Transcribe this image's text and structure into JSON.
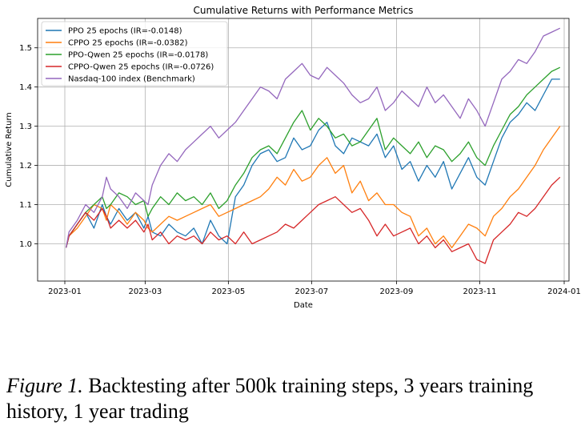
{
  "chart_data": {
    "type": "line",
    "title": "Cumulative Returns with Performance Metrics",
    "xlabel": "Date",
    "ylabel": "Cumulative Return",
    "xlim": [
      0,
      12.0
    ],
    "ylim": [
      0.905,
      1.575
    ],
    "grid": true,
    "legend_position": "top-left",
    "x_ticks": [
      {
        "label": "2023-01",
        "value": 0
      },
      {
        "label": "2023-03",
        "value": 1.93
      },
      {
        "label": "2023-05",
        "value": 3.93
      },
      {
        "label": "2023-07",
        "value": 5.93
      },
      {
        "label": "2023-09",
        "value": 7.97
      },
      {
        "label": "2023-11",
        "value": 9.97
      },
      {
        "label": "2024-01",
        "value": 12.0
      }
    ],
    "y_ticks": [
      {
        "label": "1.0",
        "value": 1.0
      },
      {
        "label": "1.1",
        "value": 1.1
      },
      {
        "label": "1.2",
        "value": 1.2
      },
      {
        "label": "1.3",
        "value": 1.3
      },
      {
        "label": "1.4",
        "value": 1.4
      },
      {
        "label": "1.5",
        "value": 1.5
      }
    ],
    "series": [
      {
        "name": "PPO 25 epochs (IR=-0.0148)",
        "color": "#1f77b4",
        "x": [
          0.03,
          0.1,
          0.3,
          0.5,
          0.7,
          0.9,
          1.0,
          1.1,
          1.3,
          1.5,
          1.7,
          1.9,
          2.0,
          2.1,
          2.3,
          2.5,
          2.7,
          2.9,
          3.1,
          3.3,
          3.5,
          3.7,
          3.9,
          4.1,
          4.3,
          4.5,
          4.7,
          4.9,
          5.1,
          5.3,
          5.5,
          5.7,
          5.9,
          6.1,
          6.3,
          6.5,
          6.7,
          6.9,
          7.1,
          7.3,
          7.5,
          7.7,
          7.9,
          8.1,
          8.3,
          8.5,
          8.7,
          8.9,
          9.1,
          9.3,
          9.5,
          9.7,
          9.9,
          10.1,
          10.3,
          10.5,
          10.7,
          10.9,
          11.1,
          11.3,
          11.5,
          11.7,
          11.9
        ],
        "y": [
          0.99,
          1.02,
          1.05,
          1.08,
          1.04,
          1.1,
          1.07,
          1.05,
          1.09,
          1.06,
          1.08,
          1.04,
          1.07,
          1.03,
          1.02,
          1.05,
          1.03,
          1.02,
          1.04,
          1.0,
          1.06,
          1.02,
          1.0,
          1.12,
          1.15,
          1.2,
          1.23,
          1.24,
          1.21,
          1.22,
          1.27,
          1.24,
          1.25,
          1.29,
          1.31,
          1.25,
          1.23,
          1.27,
          1.26,
          1.25,
          1.28,
          1.22,
          1.25,
          1.19,
          1.21,
          1.16,
          1.2,
          1.17,
          1.21,
          1.14,
          1.18,
          1.22,
          1.17,
          1.15,
          1.21,
          1.27,
          1.31,
          1.33,
          1.36,
          1.34,
          1.38,
          1.42,
          1.42
        ]
      },
      {
        "name": "CPPO 25 epochs (IR=-0.0382)",
        "color": "#ff7f0e",
        "x": [
          0.03,
          0.1,
          0.3,
          0.5,
          0.7,
          0.9,
          1.0,
          1.1,
          1.3,
          1.5,
          1.7,
          1.9,
          2.0,
          2.1,
          2.3,
          2.5,
          2.7,
          2.9,
          3.1,
          3.3,
          3.5,
          3.7,
          3.9,
          4.1,
          4.3,
          4.5,
          4.7,
          4.9,
          5.1,
          5.3,
          5.5,
          5.7,
          5.9,
          6.1,
          6.3,
          6.5,
          6.7,
          6.9,
          7.1,
          7.3,
          7.5,
          7.7,
          7.9,
          8.1,
          8.3,
          8.5,
          8.7,
          8.9,
          9.1,
          9.3,
          9.5,
          9.7,
          9.9,
          10.1,
          10.3,
          10.5,
          10.7,
          10.9,
          11.1,
          11.3,
          11.5,
          11.7,
          11.9
        ],
        "y": [
          0.99,
          1.02,
          1.04,
          1.07,
          1.1,
          1.09,
          1.06,
          1.1,
          1.08,
          1.05,
          1.08,
          1.06,
          1.04,
          1.03,
          1.05,
          1.07,
          1.06,
          1.07,
          1.08,
          1.09,
          1.1,
          1.07,
          1.08,
          1.09,
          1.1,
          1.11,
          1.12,
          1.14,
          1.17,
          1.15,
          1.19,
          1.16,
          1.17,
          1.2,
          1.22,
          1.18,
          1.2,
          1.13,
          1.16,
          1.11,
          1.13,
          1.1,
          1.1,
          1.08,
          1.07,
          1.02,
          1.04,
          1.0,
          1.02,
          0.99,
          1.02,
          1.05,
          1.04,
          1.02,
          1.07,
          1.09,
          1.12,
          1.14,
          1.17,
          1.2,
          1.24,
          1.27,
          1.3
        ]
      },
      {
        "name": "PPO-Qwen 25 epochs (IR=-0.0178)",
        "color": "#2ca02c",
        "x": [
          0.03,
          0.1,
          0.3,
          0.5,
          0.7,
          0.9,
          1.0,
          1.1,
          1.3,
          1.5,
          1.7,
          1.9,
          2.0,
          2.1,
          2.3,
          2.5,
          2.7,
          2.9,
          3.1,
          3.3,
          3.5,
          3.7,
          3.9,
          4.1,
          4.3,
          4.5,
          4.7,
          4.9,
          5.1,
          5.3,
          5.5,
          5.7,
          5.9,
          6.1,
          6.3,
          6.5,
          6.7,
          6.9,
          7.1,
          7.3,
          7.5,
          7.7,
          7.9,
          8.1,
          8.3,
          8.5,
          8.7,
          8.9,
          9.1,
          9.3,
          9.5,
          9.7,
          9.9,
          10.1,
          10.3,
          10.5,
          10.7,
          10.9,
          11.1,
          11.3,
          11.5,
          11.7,
          11.9
        ],
        "y": [
          0.99,
          1.02,
          1.05,
          1.08,
          1.1,
          1.12,
          1.09,
          1.1,
          1.13,
          1.12,
          1.1,
          1.11,
          1.07,
          1.09,
          1.12,
          1.1,
          1.13,
          1.11,
          1.12,
          1.1,
          1.13,
          1.09,
          1.11,
          1.15,
          1.18,
          1.22,
          1.24,
          1.25,
          1.23,
          1.27,
          1.31,
          1.34,
          1.29,
          1.32,
          1.3,
          1.27,
          1.28,
          1.25,
          1.26,
          1.29,
          1.32,
          1.24,
          1.27,
          1.25,
          1.23,
          1.26,
          1.22,
          1.25,
          1.24,
          1.21,
          1.23,
          1.26,
          1.22,
          1.2,
          1.25,
          1.29,
          1.33,
          1.35,
          1.38,
          1.4,
          1.42,
          1.44,
          1.45
        ]
      },
      {
        "name": "CPPO-Qwen 25 epochs (IR=-0.0726)",
        "color": "#d62728",
        "x": [
          0.03,
          0.1,
          0.3,
          0.5,
          0.7,
          0.9,
          1.0,
          1.1,
          1.3,
          1.5,
          1.7,
          1.9,
          2.0,
          2.1,
          2.3,
          2.5,
          2.7,
          2.9,
          3.1,
          3.3,
          3.5,
          3.7,
          3.9,
          4.1,
          4.3,
          4.5,
          4.7,
          4.9,
          5.1,
          5.3,
          5.5,
          5.7,
          5.9,
          6.1,
          6.3,
          6.5,
          6.7,
          6.9,
          7.1,
          7.3,
          7.5,
          7.7,
          7.9,
          8.1,
          8.3,
          8.5,
          8.7,
          8.9,
          9.1,
          9.3,
          9.5,
          9.7,
          9.9,
          10.1,
          10.3,
          10.5,
          10.7,
          10.9,
          11.1,
          11.3,
          11.5,
          11.7,
          11.9
        ],
        "y": [
          0.99,
          1.02,
          1.05,
          1.08,
          1.06,
          1.09,
          1.07,
          1.04,
          1.06,
          1.04,
          1.06,
          1.03,
          1.05,
          1.01,
          1.03,
          1.0,
          1.02,
          1.01,
          1.02,
          1.0,
          1.03,
          1.01,
          1.02,
          1.0,
          1.03,
          1.0,
          1.01,
          1.02,
          1.03,
          1.05,
          1.04,
          1.06,
          1.08,
          1.1,
          1.11,
          1.12,
          1.1,
          1.08,
          1.09,
          1.06,
          1.02,
          1.05,
          1.02,
          1.03,
          1.04,
          1.0,
          1.02,
          0.99,
          1.01,
          0.98,
          0.99,
          1.0,
          0.96,
          0.95,
          1.01,
          1.03,
          1.05,
          1.08,
          1.07,
          1.09,
          1.12,
          1.15,
          1.17
        ]
      },
      {
        "name": "Nasdaq-100 index (Benchmark)",
        "color": "#9467bd",
        "x": [
          0.03,
          0.1,
          0.3,
          0.5,
          0.7,
          0.9,
          1.0,
          1.1,
          1.3,
          1.5,
          1.7,
          1.9,
          2.0,
          2.1,
          2.3,
          2.5,
          2.7,
          2.9,
          3.1,
          3.3,
          3.5,
          3.7,
          3.9,
          4.1,
          4.3,
          4.5,
          4.7,
          4.9,
          5.1,
          5.3,
          5.5,
          5.7,
          5.9,
          6.1,
          6.3,
          6.5,
          6.7,
          6.9,
          7.1,
          7.3,
          7.5,
          7.7,
          7.9,
          8.1,
          8.3,
          8.5,
          8.7,
          8.9,
          9.1,
          9.3,
          9.5,
          9.7,
          9.9,
          10.1,
          10.3,
          10.5,
          10.7,
          10.9,
          11.1,
          11.3,
          11.5,
          11.7,
          11.9
        ],
        "y": [
          0.99,
          1.03,
          1.06,
          1.1,
          1.08,
          1.12,
          1.17,
          1.14,
          1.12,
          1.09,
          1.13,
          1.11,
          1.1,
          1.15,
          1.2,
          1.23,
          1.21,
          1.24,
          1.26,
          1.28,
          1.3,
          1.27,
          1.29,
          1.31,
          1.34,
          1.37,
          1.4,
          1.39,
          1.37,
          1.42,
          1.44,
          1.46,
          1.43,
          1.42,
          1.45,
          1.43,
          1.41,
          1.38,
          1.36,
          1.37,
          1.4,
          1.34,
          1.36,
          1.39,
          1.37,
          1.35,
          1.4,
          1.36,
          1.38,
          1.35,
          1.32,
          1.37,
          1.34,
          1.3,
          1.36,
          1.42,
          1.44,
          1.47,
          1.46,
          1.49,
          1.53,
          1.54,
          1.55
        ]
      }
    ]
  },
  "caption": {
    "label": "Figure 1.",
    "text": " Backtesting after 500k training steps, 3 years training history, 1 year trading"
  }
}
